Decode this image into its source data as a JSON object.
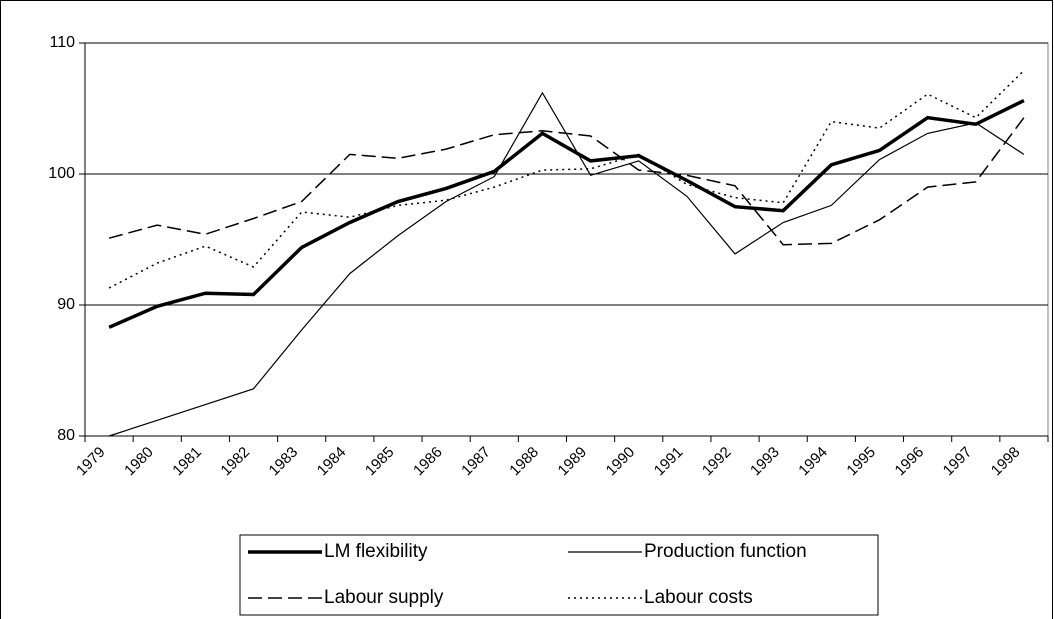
{
  "chart_data": {
    "type": "line",
    "categories": [
      "1979",
      "1980",
      "1981",
      "1982",
      "1983",
      "1984",
      "1985",
      "1986",
      "1987",
      "1988",
      "1989",
      "1990",
      "1991",
      "1992",
      "1993",
      "1994",
      "1995",
      "1996",
      "1997",
      "1998"
    ],
    "ylim": [
      80,
      110
    ],
    "yticks": [
      80,
      90,
      100,
      110
    ],
    "grid": true,
    "legend": "bottom",
    "series": [
      {
        "name": "LM flexibility",
        "color": "#000000",
        "line_style": "solid",
        "line_width": 3.5,
        "values": [
          88.3,
          89.9,
          90.9,
          90.8,
          94.4,
          96.3,
          97.9,
          98.9,
          100.2,
          103.1,
          101.0,
          101.4,
          99.5,
          97.5,
          97.2,
          100.7,
          101.8,
          104.3,
          103.8,
          105.6
        ]
      },
      {
        "name": "Production function",
        "color": "#000000",
        "line_style": "solid",
        "line_width": 1.2,
        "values": [
          80.0,
          81.2,
          82.4,
          83.6,
          88.1,
          92.4,
          95.3,
          97.9,
          99.8,
          106.2,
          99.9,
          101.0,
          98.3,
          93.9,
          96.3,
          97.6,
          101.1,
          103.1,
          103.9,
          101.5
        ]
      },
      {
        "name": "Labour supply",
        "color": "#000000",
        "line_style": "dashed",
        "line_width": 1.5,
        "values": [
          95.1,
          96.1,
          95.4,
          96.6,
          97.9,
          101.5,
          101.2,
          101.9,
          103.0,
          103.3,
          102.9,
          100.3,
          99.9,
          99.1,
          94.6,
          94.7,
          96.5,
          99.0,
          99.4,
          104.3
        ]
      },
      {
        "name": "Labour costs",
        "color": "#000000",
        "line_style": "dotted",
        "line_width": 1.5,
        "values": [
          91.3,
          93.2,
          94.5,
          92.9,
          97.1,
          96.7,
          97.6,
          98.0,
          99.0,
          100.3,
          100.4,
          101.5,
          99.2,
          98.2,
          97.8,
          104.0,
          103.5,
          106.1,
          104.3,
          107.9
        ]
      }
    ]
  }
}
